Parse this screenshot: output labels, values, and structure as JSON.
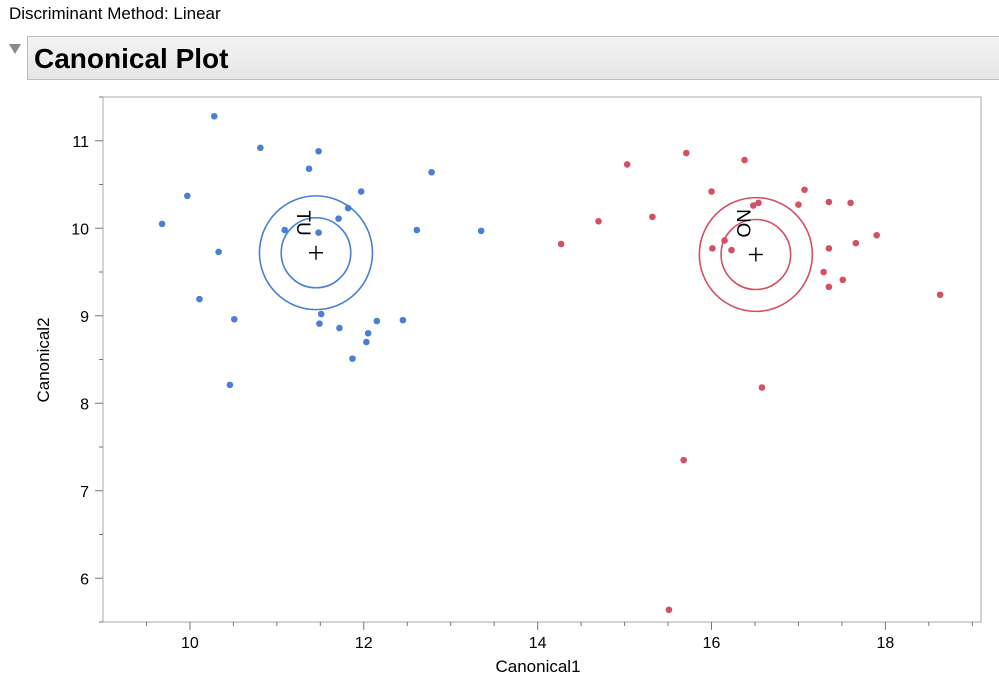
{
  "header": {
    "method_label": "Discriminant Method:",
    "method_value": "Linear",
    "section_title": "Canonical Plot"
  },
  "chart_data": {
    "type": "scatter",
    "title": "",
    "xlabel": "Canonical1",
    "ylabel": "Canonical2",
    "xlim": [
      9,
      19.1
    ],
    "ylim": [
      5.5,
      11.5
    ],
    "xticks": [
      10,
      12,
      14,
      16,
      18
    ],
    "yticks": [
      6,
      7,
      8,
      9,
      10,
      11
    ],
    "grid": false,
    "series": [
      {
        "color": "#4a7fd3",
        "points": [
          [
            10.28,
            11.28
          ],
          [
            10.81,
            10.92
          ],
          [
            11.48,
            10.88
          ],
          [
            11.37,
            10.68
          ],
          [
            11.82,
            10.23
          ],
          [
            11.97,
            10.42
          ],
          [
            12.78,
            10.64
          ],
          [
            9.97,
            10.37
          ],
          [
            9.68,
            10.05
          ],
          [
            11.09,
            9.98
          ],
          [
            11.71,
            10.11
          ],
          [
            12.61,
            9.98
          ],
          [
            11.48,
            9.95
          ],
          [
            13.35,
            9.97
          ],
          [
            10.33,
            9.73
          ],
          [
            10.11,
            9.19
          ],
          [
            10.51,
            8.96
          ],
          [
            11.51,
            9.02
          ],
          [
            11.49,
            8.91
          ],
          [
            11.72,
            8.86
          ],
          [
            12.15,
            8.94
          ],
          [
            12.45,
            8.95
          ],
          [
            12.05,
            8.8
          ],
          [
            12.03,
            8.7
          ],
          [
            11.87,
            8.51
          ],
          [
            10.46,
            8.21
          ]
        ],
        "centroid": {
          "label": "TU",
          "x": 11.45,
          "y": 9.72,
          "inner_radius": 0.4,
          "outer_radius": 0.65
        }
      },
      {
        "color": "#d45063",
        "points": [
          [
            15.71,
            10.86
          ],
          [
            16.38,
            10.78
          ],
          [
            15.03,
            10.73
          ],
          [
            16.0,
            10.42
          ],
          [
            17.07,
            10.44
          ],
          [
            16.48,
            10.26
          ],
          [
            16.54,
            10.29
          ],
          [
            17.0,
            10.27
          ],
          [
            17.35,
            10.3
          ],
          [
            17.6,
            10.29
          ],
          [
            15.32,
            10.13
          ],
          [
            14.7,
            10.08
          ],
          [
            16.15,
            9.86
          ],
          [
            16.01,
            9.77
          ],
          [
            16.23,
            9.75
          ],
          [
            17.35,
            9.77
          ],
          [
            17.66,
            9.83
          ],
          [
            17.9,
            9.92
          ],
          [
            14.27,
            9.82
          ],
          [
            17.29,
            9.5
          ],
          [
            17.51,
            9.41
          ],
          [
            17.35,
            9.33
          ],
          [
            18.63,
            9.24
          ],
          [
            16.58,
            8.18
          ],
          [
            15.68,
            7.35
          ],
          [
            15.51,
            5.64
          ]
        ],
        "centroid": {
          "label": "NO",
          "x": 16.51,
          "y": 9.7,
          "inner_radius": 0.4,
          "outer_radius": 0.65
        }
      }
    ]
  }
}
